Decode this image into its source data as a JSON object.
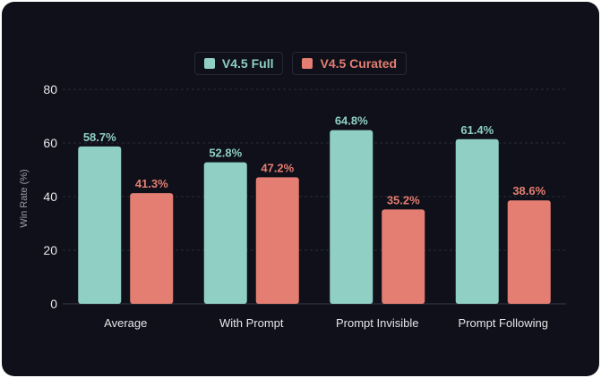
{
  "chart_data": {
    "type": "bar",
    "categories": [
      "Average",
      "With Prompt",
      "Prompt Invisible",
      "Prompt Following"
    ],
    "series": [
      {
        "name": "V4.5 Full",
        "values": [
          58.7,
          52.8,
          64.8,
          61.4
        ],
        "color": "#8fcfc4"
      },
      {
        "name": "V4.5 Curated",
        "values": [
          41.3,
          47.2,
          35.2,
          38.6
        ],
        "color": "#e47e72"
      }
    ],
    "value_labels": {
      "full": [
        "58.7%",
        "52.8%",
        "64.8%",
        "61.4%"
      ],
      "curated": [
        "41.3%",
        "47.2%",
        "35.2%",
        "38.6%"
      ]
    },
    "title": "",
    "xlabel": "",
    "ylabel": "Win Rate (%)",
    "ylim": [
      0,
      80
    ],
    "yticks": [
      "0",
      "20",
      "40",
      "60",
      "80"
    ],
    "grid": true,
    "legend_position": "top-center"
  }
}
